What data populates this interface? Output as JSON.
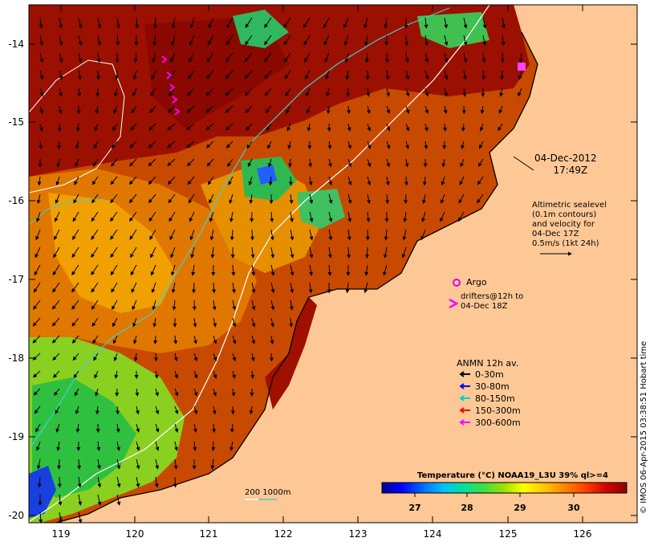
{
  "map": {
    "lat_labels": [
      "-14",
      "-15",
      "-16",
      "-17",
      "-18",
      "-19",
      "-20"
    ],
    "lon_labels": [
      "119",
      "120",
      "121",
      "122",
      "123",
      "124",
      "125",
      "126"
    ],
    "colors": {
      "land": "#fdc896",
      "sst_hot": "#9b0a00",
      "sst_mid": "#d24a00",
      "sst_warm": "#f09a00",
      "sst_cool": "#2fc84a",
      "sst_cold": "#2060ff",
      "contour_200": "#ffffff",
      "contour_1000": "#40d0d0",
      "argo": "#e000e0"
    }
  },
  "date_label": {
    "line1": "04-Dec-2012",
    "line2": "17:49Z"
  },
  "altimetry": {
    "lines": [
      "Altimetric sealevel",
      "(0.1m contours)",
      "and velocity for",
      "04-Dec 17Z",
      "0.5m/s (1kt 24h)"
    ]
  },
  "argo_label": "Argo",
  "drifters": {
    "line1": "drifters@12h to",
    "line2": "04-Dec 18Z",
    "symbol": ">"
  },
  "anmn": {
    "title": "ANMN 12h av.",
    "items": [
      {
        "label": "0-30m",
        "color": "#000000"
      },
      {
        "label": "30-80m",
        "color": "#0000ff"
      },
      {
        "label": "80-150m",
        "color": "#00d0d0"
      },
      {
        "label": "150-300m",
        "color": "#ff0000"
      },
      {
        "label": "300-600m",
        "color": "#ff00ff"
      }
    ]
  },
  "colorbar": {
    "title": "Temperature (°C) NOAA19_L3U 39% ql>=4",
    "ticks": [
      "27",
      "28",
      "29",
      "30"
    ],
    "stops": [
      "#000090",
      "#0000ff",
      "#0070ff",
      "#00c0ff",
      "#00e0a0",
      "#40e040",
      "#a0e000",
      "#ffff00",
      "#ffc000",
      "#ff8000",
      "#ff4000",
      "#d00000",
      "#900000"
    ]
  },
  "isobath_label": "200  1000m",
  "credit": "© IMOS 06-Apr-2015 03:38:51 Hobart time"
}
